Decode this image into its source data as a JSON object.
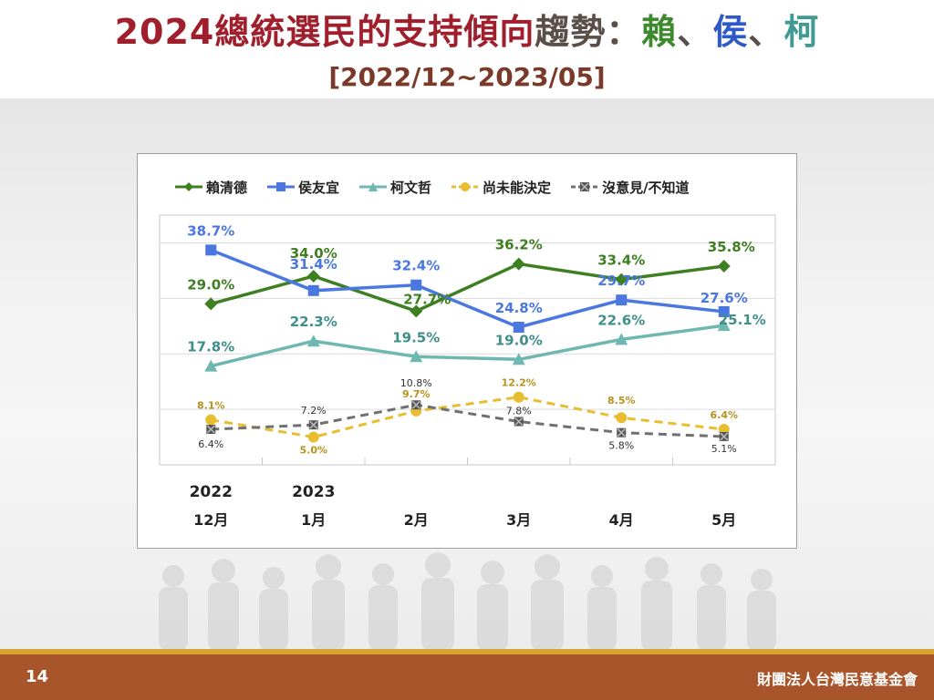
{
  "title": {
    "main": "2024總統選民的支持傾向",
    "mid": "趨勢",
    "colon": "：",
    "lai": "賴",
    "sep1": "、",
    "hou": "侯",
    "sep2": "、",
    "ko": "柯",
    "subtitle": "[2022/12~2023/05]"
  },
  "footer": {
    "page_number": "14",
    "organization": "財團法人台灣民意基金會"
  },
  "chart_data": {
    "type": "line",
    "categories": [
      "2022 12月",
      "2023 1月",
      "2月",
      "3月",
      "4月",
      "5月"
    ],
    "x_labels_top": [
      "2022",
      "2023",
      "",
      "",
      "",
      ""
    ],
    "x_labels_bottom": [
      "12月",
      "1月",
      "2月",
      "3月",
      "4月",
      "5月"
    ],
    "ylim": [
      0,
      45
    ],
    "grid": true,
    "legend_position": "top",
    "series": [
      {
        "name": "賴清德",
        "color": "#3e7f22",
        "marker": "diamond",
        "dashed": false,
        "values": [
          29.0,
          34.0,
          27.7,
          36.2,
          33.4,
          35.8
        ],
        "labels": [
          "29.0%",
          "34.0%",
          "27.7%",
          "36.2%",
          "33.4%",
          "35.8%"
        ]
      },
      {
        "name": "侯友宜",
        "color": "#4a78e0",
        "marker": "square",
        "dashed": false,
        "values": [
          38.7,
          31.4,
          32.4,
          24.8,
          29.7,
          27.6
        ],
        "labels": [
          "38.7%",
          "31.4%",
          "32.4%",
          "24.8%",
          "29.7%",
          "27.6%"
        ]
      },
      {
        "name": "柯文哲",
        "color": "#6fb8b1",
        "marker": "triangle",
        "dashed": false,
        "values": [
          17.8,
          22.3,
          19.5,
          19.0,
          22.6,
          25.1
        ],
        "labels": [
          "17.8%",
          "22.3%",
          "19.5%",
          "19.0%",
          "22.6%",
          "25.1%"
        ]
      },
      {
        "name": "尚未能決定",
        "color": "#e8bd2f",
        "marker": "circle",
        "dashed": true,
        "values": [
          8.1,
          5.0,
          9.7,
          12.2,
          8.5,
          6.4
        ],
        "labels": [
          "8.1%",
          "5.0%",
          "9.7%",
          "12.2%",
          "8.5%",
          "6.4%"
        ]
      },
      {
        "name": "沒意見/不知道",
        "color": "#707070",
        "marker": "xsquare",
        "dashed": true,
        "values": [
          6.4,
          7.2,
          10.8,
          7.8,
          5.8,
          5.1
        ],
        "labels": [
          "6.4%",
          "7.2%",
          "10.8%",
          "7.8%",
          "5.8%",
          "5.1%"
        ]
      }
    ]
  }
}
